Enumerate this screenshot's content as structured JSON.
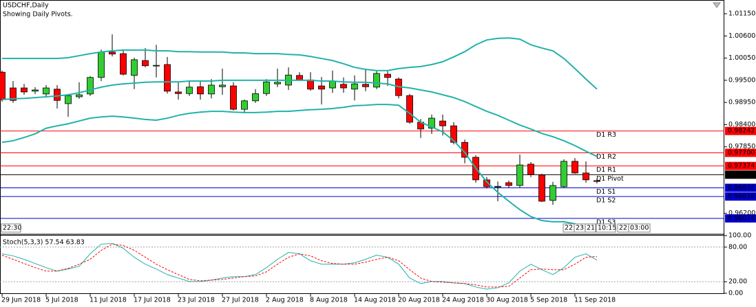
{
  "chart_data": [
    {
      "type": "candlestick",
      "title": "USDCHF,Daily",
      "subtitle": "Showing Daily Pivots.",
      "categories": [
        "29 Jun 2018",
        null,
        null,
        null,
        "5 Jul 2018",
        null,
        null,
        null,
        "11 Jul 2018",
        null,
        null,
        null,
        "17 Jul 2018",
        null,
        null,
        null,
        "23 Jul 2018",
        null,
        null,
        null,
        "27 Jul 2018",
        null,
        null,
        null,
        "2 Aug 2018",
        null,
        null,
        null,
        "8 Aug 2018",
        null,
        null,
        null,
        "14 Aug 2018",
        null,
        null,
        null,
        "20 Aug 2018",
        null,
        null,
        null,
        "24 Aug 2018",
        null,
        null,
        null,
        "30 Aug 2018",
        null,
        null,
        null,
        "5 Sep 2018",
        null,
        null,
        null,
        "11 Sep 2018",
        null,
        null
      ],
      "open": [
        0.997,
        0.9931,
        0.9931,
        0.9923,
        0.9916,
        0.9928,
        0.9892,
        0.9909,
        0.9916,
        0.9957,
        1.002,
        1.0016,
        0.9962,
        0.9999,
        0.9986,
        0.9989,
        0.9921,
        0.9917,
        0.9934,
        0.9916,
        0.9934,
        0.9936,
        0.9878,
        0.9899,
        0.9917,
        0.9941,
        0.9938,
        0.9962,
        0.9951,
        0.9936,
        0.9931,
        0.994,
        0.9928,
        0.994,
        0.9933,
        0.9965,
        0.9953,
        0.9912,
        0.9846,
        0.9831,
        0.9849,
        0.9837,
        0.9796,
        0.9759,
        0.9703,
        0.9686,
        0.9696,
        0.9689,
        0.9742,
        0.9715,
        0.9652,
        0.9686,
        0.9749,
        0.972,
        0.9701
      ],
      "high": [
        0.9974,
        0.9948,
        0.9941,
        0.9933,
        0.9938,
        0.9938,
        0.9916,
        0.9945,
        0.996,
        1.0026,
        1.0064,
        1.0025,
        1.0006,
        1.003,
        1.0038,
        1.0008,
        0.9945,
        0.995,
        0.995,
        0.9953,
        0.9979,
        0.9945,
        0.9902,
        0.9928,
        0.9953,
        0.9979,
        0.9982,
        0.997,
        0.997,
        0.9958,
        0.9974,
        0.9957,
        0.9962,
        0.9979,
        0.9975,
        0.9974,
        0.9957,
        0.9916,
        0.9854,
        0.9865,
        0.9865,
        0.9846,
        0.9803,
        0.9764,
        0.971,
        0.9699,
        0.9701,
        0.9766,
        0.9747,
        0.9718,
        0.9698,
        0.9754,
        0.9757,
        0.9749,
        0.9706
      ],
      "low": [
        0.9897,
        0.9894,
        0.9914,
        0.9916,
        0.9907,
        0.988,
        0.9859,
        0.9904,
        0.9911,
        0.9948,
        1.0009,
        0.9962,
        0.9928,
        0.9982,
        0.9957,
        0.9917,
        0.9902,
        0.9911,
        0.9902,
        0.9905,
        0.9914,
        0.9875,
        0.9868,
        0.9894,
        0.9911,
        0.9933,
        0.9926,
        0.9948,
        0.9924,
        0.989,
        0.9919,
        0.9919,
        0.99,
        0.9923,
        0.9928,
        0.9936,
        0.9905,
        0.9842,
        0.9807,
        0.9817,
        0.9813,
        0.9791,
        0.9744,
        0.9696,
        0.9682,
        0.965,
        0.9684,
        0.9684,
        0.971,
        0.9648,
        0.9641,
        0.9684,
        0.9718,
        0.9696,
        0.9694
      ],
      "close": [
        0.9902,
        0.99,
        0.9921,
        0.9926,
        0.9931,
        0.99,
        0.9912,
        0.9914,
        0.9957,
        1.002,
        1.0015,
        0.9965,
        1.0001,
        0.9986,
        0.9987,
        0.9923,
        0.9917,
        0.9933,
        0.9916,
        0.9938,
        0.9938,
        0.9878,
        0.9899,
        0.9917,
        0.9946,
        0.9945,
        0.9963,
        0.9951,
        0.9928,
        0.9928,
        0.9948,
        0.9931,
        0.9941,
        0.9934,
        0.9967,
        0.9957,
        0.9912,
        0.9846,
        0.9829,
        0.9856,
        0.9837,
        0.9796,
        0.9759,
        0.9703,
        0.9686,
        0.9687,
        0.9689,
        0.974,
        0.9716,
        0.965,
        0.9689,
        0.9749,
        0.972,
        0.9703,
        0.9699
      ],
      "up_color": "#32cd32",
      "down_color": "#ff0000",
      "wick_color": "#000000",
      "bollinger": {
        "color": "#20b2aa",
        "upper": [
          1.0004,
          1.0004,
          1.0004,
          1.0004,
          1.0004,
          1.0004,
          1.0006,
          1.0011,
          1.0016,
          1.002,
          1.0023,
          1.0025,
          1.0025,
          1.0025,
          1.0023,
          1.0023,
          1.0021,
          1.0021,
          1.002,
          1.002,
          1.002,
          1.0018,
          1.0018,
          1.0016,
          1.0016,
          1.0016,
          1.0014,
          1.0013,
          1.0009,
          1.0004,
          0.9999,
          0.9991,
          0.9982,
          0.9977,
          0.9974,
          0.9974,
          0.9979,
          0.9982,
          0.9984,
          0.9989,
          0.9996,
          1.0008,
          1.0021,
          1.0038,
          1.005,
          1.0054,
          1.0055,
          1.0052,
          1.0038,
          1.003,
          1.0023,
          1.0004,
          0.9979,
          0.9953,
          0.9928
        ],
        "middle": [
          0.9902,
          0.9904,
          0.9905,
          0.9907,
          0.9909,
          0.9911,
          0.9914,
          0.9919,
          0.9926,
          0.9933,
          0.9938,
          0.9941,
          0.9943,
          0.9945,
          0.9946,
          0.9946,
          0.9946,
          0.9948,
          0.9948,
          0.9948,
          0.995,
          0.995,
          0.995,
          0.995,
          0.995,
          0.995,
          0.995,
          0.995,
          0.995,
          0.9948,
          0.9948,
          0.9946,
          0.9945,
          0.9945,
          0.9943,
          0.9941,
          0.9934,
          0.9931,
          0.9926,
          0.9921,
          0.9914,
          0.9907,
          0.9897,
          0.9885,
          0.9873,
          0.9863,
          0.9851,
          0.9839,
          0.9829,
          0.9818,
          0.981,
          0.98,
          0.9788,
          0.9774,
          0.9761
        ],
        "lower": [
          0.9796,
          0.98,
          0.9808,
          0.9817,
          0.9831,
          0.9837,
          0.9842,
          0.9849,
          0.9856,
          0.9859,
          0.9861,
          0.9859,
          0.9856,
          0.9853,
          0.9851,
          0.9856,
          0.9863,
          0.9868,
          0.9871,
          0.9873,
          0.9873,
          0.9871,
          0.987,
          0.987,
          0.9871,
          0.9873,
          0.9873,
          0.9875,
          0.9877,
          0.9878,
          0.988,
          0.9883,
          0.9887,
          0.9888,
          0.989,
          0.989,
          0.9888,
          0.9868,
          0.9846,
          0.9834,
          0.9822,
          0.98,
          0.9771,
          0.9732,
          0.9698,
          0.9672,
          0.965,
          0.9629,
          0.9612,
          0.9602,
          0.9599,
          0.9599,
          0.9594,
          0.9587,
          0.958
        ]
      },
      "pivots": [
        {
          "name": "D1 R3",
          "value": 0.98242,
          "label": "0.98242",
          "color": "#ff0000"
        },
        {
          "name": "D1 R2",
          "value": 0.977,
          "label": "0.97700",
          "color": "#ff0000"
        },
        {
          "name": "D1 R1",
          "value": 0.97374,
          "label": "0.97374",
          "color": "#ff0000"
        },
        {
          "name": "D1 Pivot",
          "value": 0.97158,
          "label": "0.97158",
          "color": "#000000"
        },
        {
          "name": "D1 S1",
          "value": 0.96832,
          "label": "0.96832",
          "color": "#0000cd"
        },
        {
          "name": "D1 S2",
          "value": 0.96616,
          "label": "0.96616",
          "color": "#0000cd"
        },
        {
          "name": "D1 S3",
          "value": 0.96074,
          "label": "0.96074",
          "color": "#0000cd"
        }
      ],
      "ylim": [
        0.95699,
        1.01491
      ],
      "yticks": [
        {
          "value": 1.0115,
          "label": "1.01150"
        },
        {
          "value": 1.006,
          "label": "1.00600"
        },
        {
          "value": 1.0005,
          "label": "1.00050"
        },
        {
          "value": 0.995,
          "label": "0.99500"
        },
        {
          "value": 0.9895,
          "label": "0.98950"
        },
        {
          "value": 0.984,
          "label": "0.98400"
        },
        {
          "value": 0.9785,
          "label": "0.97850"
        },
        {
          "value": 0.962,
          "label": "0.96200"
        }
      ],
      "time_labels": [
        "22:30",
        "22:",
        "23:",
        "21:",
        "10:15",
        "22:",
        "03:00"
      ]
    },
    {
      "type": "line",
      "title": "Stoch(5,3,3) 57.54 63.83",
      "series": [
        {
          "color": "#20b2aa",
          "dashed": false,
          "values": [
            68.4,
            64.8,
            58.8,
            51.6,
            44.4,
            38.4,
            42.0,
            46.8,
            68.4,
            85.2,
            86.4,
            78.0,
            62.4,
            50.4,
            42.0,
            32.4,
            26.4,
            20.4,
            20.4,
            22.8,
            26.4,
            28.8,
            28.8,
            32.4,
            44.4,
            58.8,
            70.8,
            68.4,
            56.4,
            50.4,
            50.4,
            50.4,
            52.8,
            58.8,
            66.0,
            62.4,
            50.4,
            26.4,
            16.8,
            20.4,
            20.4,
            18.0,
            16.8,
            10.8,
            7.2,
            9.6,
            18.0,
            38.4,
            50.4,
            40.8,
            32.4,
            44.4,
            62.4,
            68.4,
            57.54
          ]
        },
        {
          "color": "#ff0000",
          "dashed": true,
          "values": [
            66.0,
            58.8,
            51.6,
            44.4,
            38.4,
            38.4,
            43.2,
            50.4,
            58.8,
            74.4,
            85.2,
            82.8,
            74.4,
            62.4,
            50.4,
            40.8,
            32.4,
            24.0,
            21.6,
            22.8,
            24.0,
            26.4,
            28.8,
            30.0,
            37.2,
            50.4,
            62.4,
            68.4,
            64.8,
            56.4,
            51.6,
            50.4,
            50.4,
            54.0,
            58.8,
            62.4,
            56.4,
            40.8,
            26.4,
            20.4,
            19.2,
            18.0,
            16.8,
            14.4,
            10.8,
            10.8,
            12.0,
            26.4,
            40.8,
            42.0,
            40.8,
            40.8,
            50.4,
            62.4,
            63.83
          ]
        }
      ],
      "ylim": [
        0,
        100
      ],
      "yticks": [
        {
          "value": 100,
          "label": "100.00"
        },
        {
          "value": 80,
          "label": "80.00"
        },
        {
          "value": 20,
          "label": "20.00"
        },
        {
          "value": 0,
          "label": "0.00"
        }
      ]
    }
  ]
}
